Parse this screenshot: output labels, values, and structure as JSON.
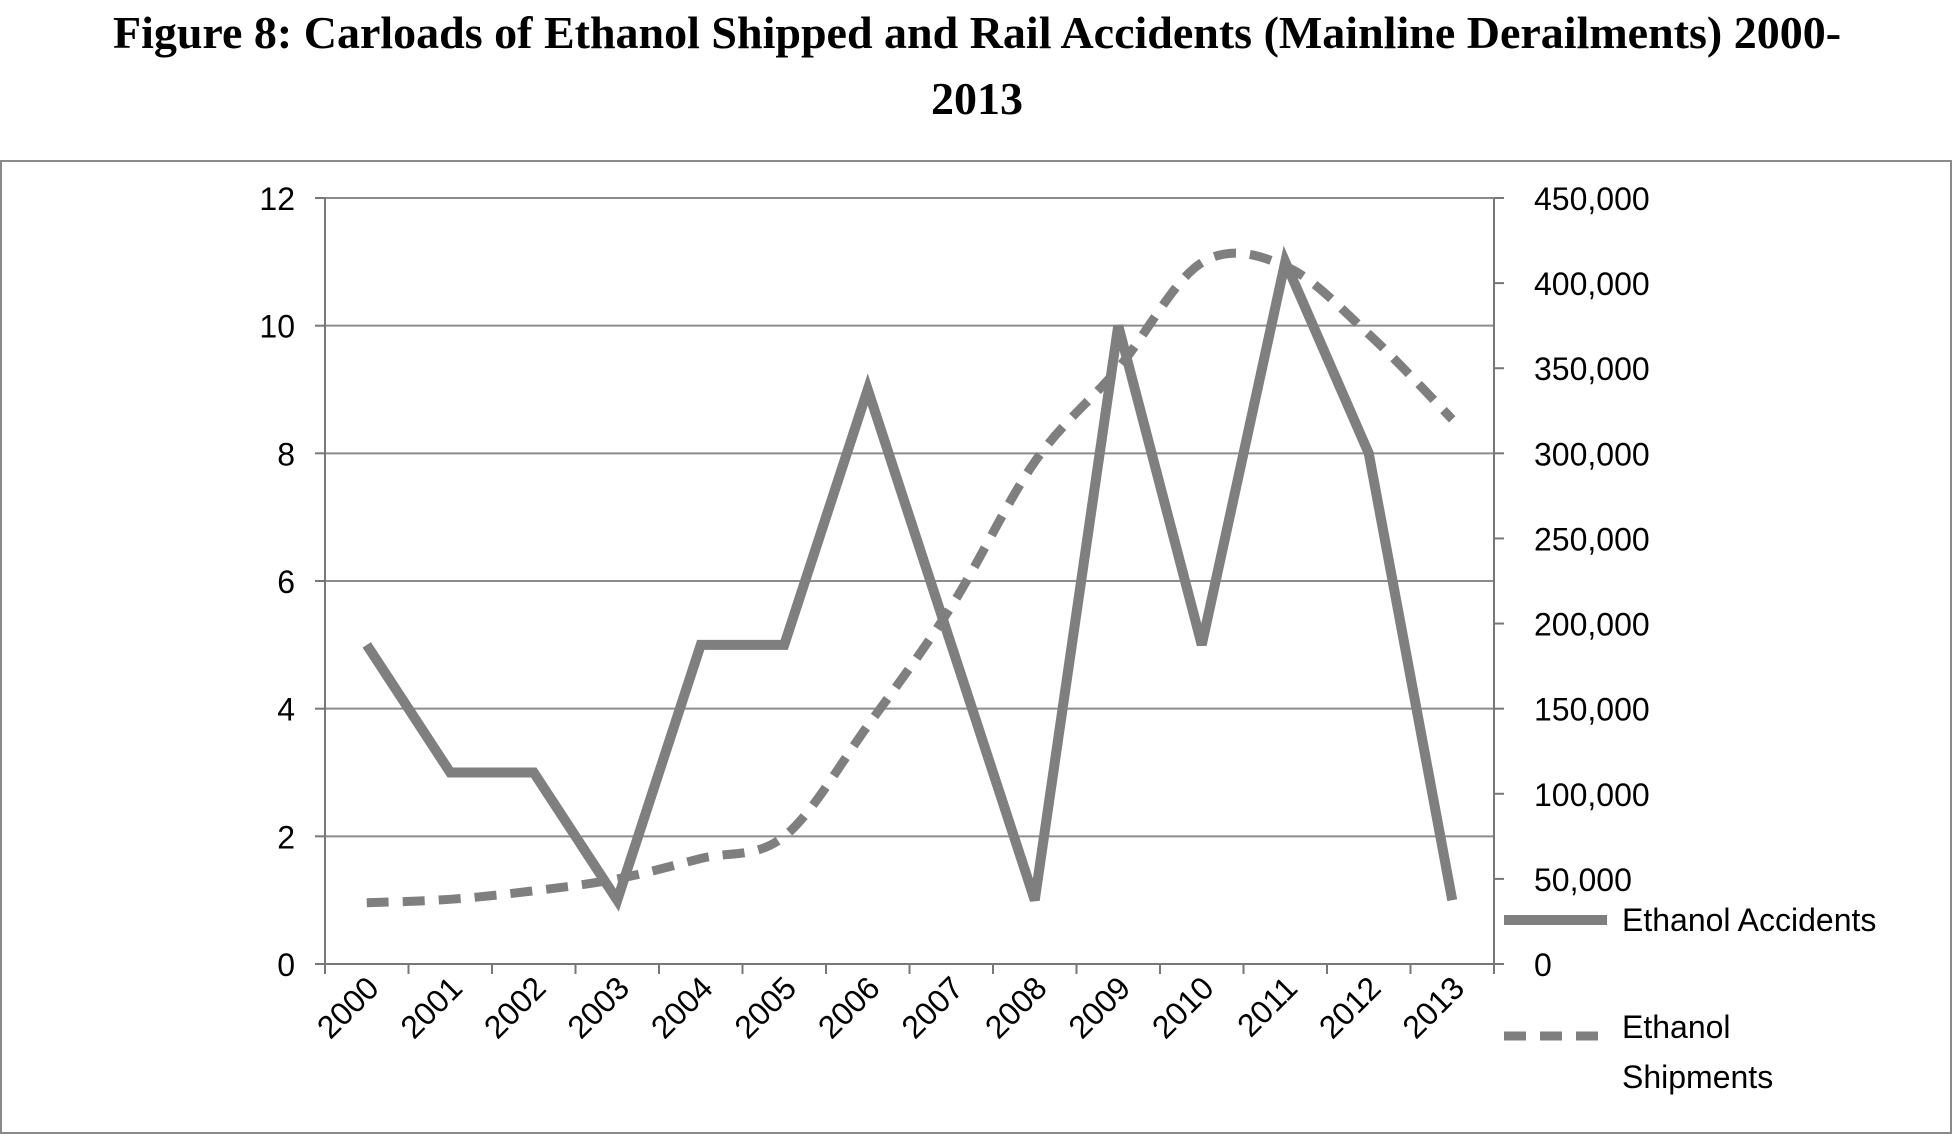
{
  "title_line1": "Figure 8: Carloads of Ethanol Shipped and Rail Accidents (Mainline Derailments) 2000-",
  "title_line2": "2013",
  "chart_data": {
    "type": "line",
    "x": [
      "2000",
      "2001",
      "2002",
      "2003",
      "2004",
      "2005",
      "2006",
      "2007",
      "2008",
      "2009",
      "2010",
      "2011",
      "2012",
      "2013"
    ],
    "series": [
      {
        "name": "Ethanol Accidents",
        "axis": "left",
        "style": "solid",
        "values": [
          5,
          3,
          3,
          1,
          5,
          5,
          9,
          5,
          1,
          10,
          5,
          11,
          8,
          1
        ]
      },
      {
        "name": "Ethanol Shipments",
        "axis": "right",
        "style": "dashed",
        "values": [
          36000,
          38000,
          43000,
          50000,
          62000,
          75000,
          140000,
          210000,
          295000,
          350000,
          412000,
          410000,
          370000,
          320000
        ]
      }
    ],
    "y_left": {
      "ylim": [
        0,
        12
      ],
      "ticks": [
        0,
        2,
        4,
        6,
        8,
        10,
        12
      ],
      "tick_labels": [
        "0",
        "2",
        "4",
        "6",
        "8",
        "10",
        "12"
      ]
    },
    "y_right": {
      "ylim": [
        0,
        450000
      ],
      "ticks": [
        0,
        50000,
        100000,
        150000,
        200000,
        250000,
        300000,
        350000,
        400000,
        450000
      ],
      "tick_labels": [
        "0",
        "50,000",
        "100,000",
        "150,000",
        "200,000",
        "250,000",
        "300,000",
        "350,000",
        "400,000",
        "450,000"
      ]
    },
    "legend_labels": [
      "Ethanol Accidents",
      "Ethanol",
      "Shipments"
    ],
    "grid": true,
    "legend": "right",
    "line_color": "#7f7f7f",
    "grid_color": "#8c8c8c"
  }
}
